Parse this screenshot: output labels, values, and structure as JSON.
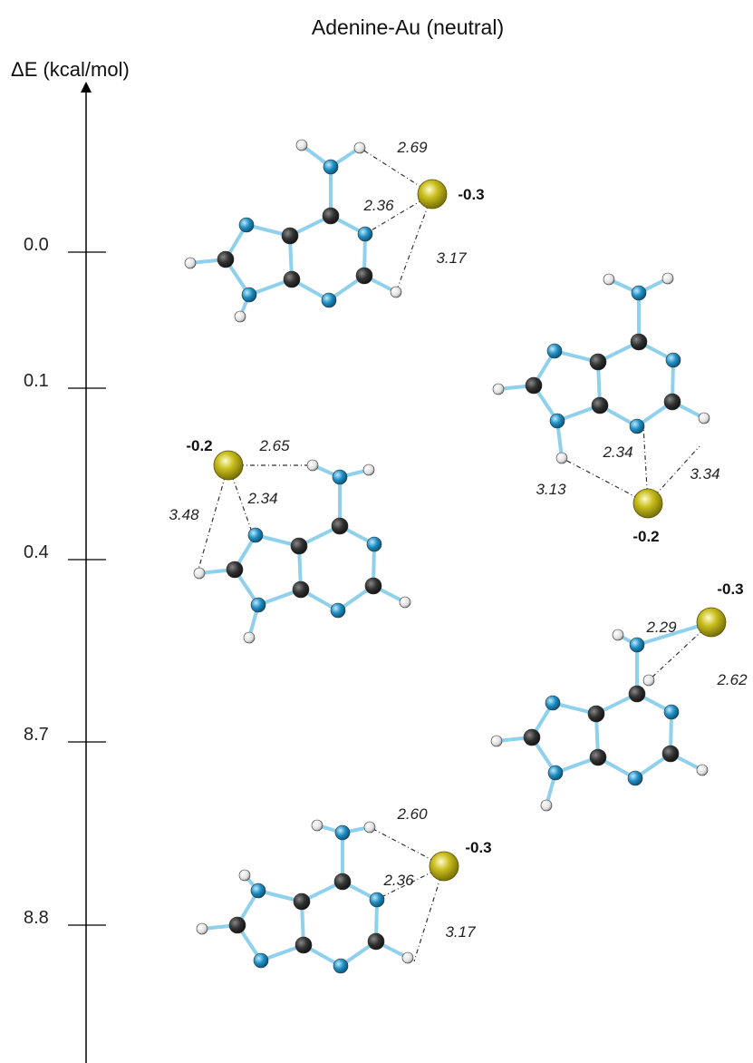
{
  "title": "Adenine-Au (neutral)",
  "axis": {
    "label": "ΔE (kcal/mol)",
    "levels": [
      "0.0",
      "0.1",
      "0.4",
      "8.7",
      "8.8"
    ]
  },
  "structures": [
    {
      "charge": "-0.3",
      "distances": [
        "2.69",
        "2.36",
        "3.17"
      ]
    },
    {
      "charge": "-0.2",
      "distances": [
        "2.34",
        "3.13",
        "3.34"
      ]
    },
    {
      "charge": "-0.2",
      "distances": [
        "2.65",
        "2.34",
        "3.48"
      ]
    },
    {
      "charge": "-0.3",
      "distances": [
        "2.29",
        "2.62"
      ]
    },
    {
      "charge": "-0.3",
      "distances": [
        "2.60",
        "2.36",
        "3.17"
      ]
    }
  ]
}
